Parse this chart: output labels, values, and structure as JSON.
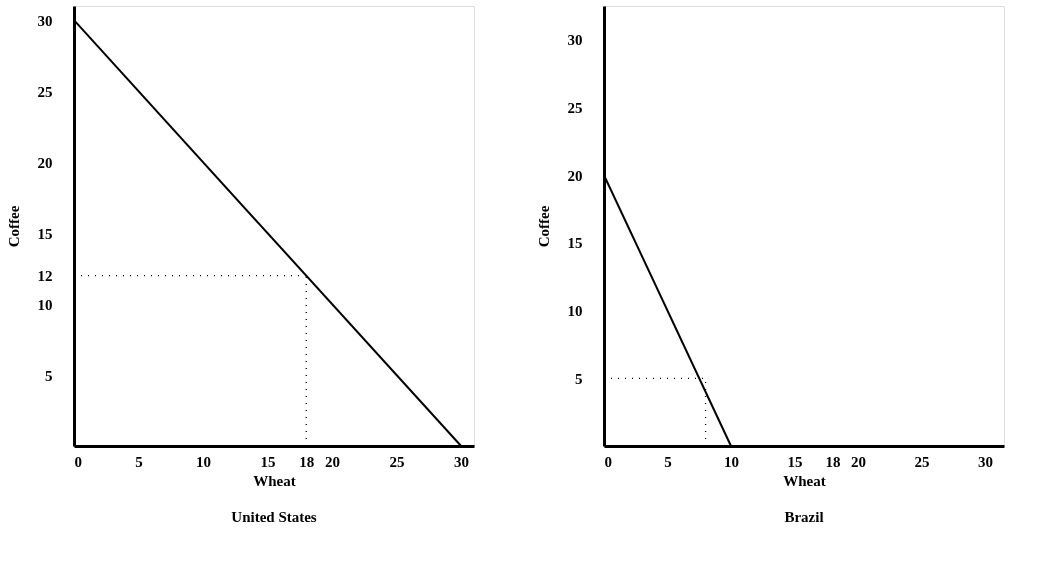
{
  "chart_data": [
    {
      "type": "line",
      "title": "United States",
      "xlabel": "Wheat",
      "ylabel": "Coffee",
      "x": [
        0,
        30
      ],
      "series": [
        {
          "color": "#000000",
          "values": [
            30,
            0
          ]
        }
      ],
      "xlim": [
        0,
        31
      ],
      "ylim": [
        0,
        31
      ],
      "xticks": [
        0,
        5,
        10,
        15,
        18,
        20,
        25,
        30
      ],
      "yticks": [
        5,
        10,
        12,
        15,
        20,
        25,
        30
      ],
      "ref_lines": [
        {
          "axis": "x",
          "value": 18,
          "line_style": "dotted",
          "color": "#000000"
        },
        {
          "axis": "y",
          "value": 12,
          "line_style": "dotted",
          "color": "#000000"
        }
      ],
      "grid": false,
      "marker": "none",
      "line_style": "solid"
    },
    {
      "type": "line",
      "title": "Brazil",
      "xlabel": "Wheat",
      "ylabel": "Coffee",
      "x": [
        0,
        10
      ],
      "series": [
        {
          "color": "#000000",
          "values": [
            20,
            0
          ]
        }
      ],
      "xlim": [
        0,
        31.5
      ],
      "ylim": [
        0,
        32.5
      ],
      "xticks": [
        0,
        5,
        10,
        15,
        18,
        20,
        25,
        30
      ],
      "yticks": [
        5,
        10,
        15,
        20,
        25,
        30
      ],
      "ref_lines": [
        {
          "axis": "x",
          "value": 8,
          "line_style": "dotted",
          "color": "#000000"
        },
        {
          "axis": "y",
          "value": 5,
          "line_style": "dotted",
          "color": "#000000"
        }
      ],
      "grid": false,
      "marker": "none",
      "line_style": "solid"
    }
  ]
}
